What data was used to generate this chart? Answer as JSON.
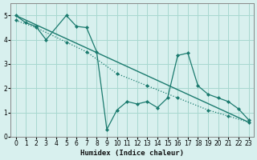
{
  "background_color": "#d8f0ee",
  "grid_color": "#a8d8d0",
  "line_color": "#1a7a6e",
  "xlabel": "Humidex (Indice chaleur)",
  "xlim": [
    -0.5,
    23.5
  ],
  "ylim": [
    0,
    5.5
  ],
  "yticks": [
    0,
    1,
    2,
    3,
    4,
    5
  ],
  "xticks": [
    0,
    1,
    2,
    3,
    4,
    5,
    6,
    7,
    8,
    9,
    10,
    11,
    12,
    13,
    14,
    15,
    16,
    17,
    18,
    19,
    20,
    21,
    22,
    23
  ],
  "series_straight": {
    "x": [
      0,
      23
    ],
    "y": [
      5.0,
      0.6
    ]
  },
  "series_dotted": {
    "x": [
      0,
      2,
      5,
      7,
      10,
      13,
      16,
      19,
      21,
      23
    ],
    "y": [
      4.8,
      4.5,
      3.9,
      3.5,
      2.6,
      2.1,
      1.6,
      1.1,
      0.85,
      0.6
    ]
  },
  "series_zigzag": {
    "x": [
      0,
      1,
      2,
      3,
      5,
      6,
      7,
      8,
      9,
      10,
      11,
      12,
      13,
      14,
      15,
      16,
      17,
      18,
      19,
      20,
      21,
      22,
      23
    ],
    "y": [
      5.0,
      4.7,
      4.55,
      4.0,
      5.0,
      4.55,
      4.5,
      3.5,
      0.3,
      1.1,
      1.45,
      1.35,
      1.45,
      1.2,
      1.6,
      3.35,
      3.45,
      2.1,
      1.75,
      1.6,
      1.45,
      1.15,
      0.7
    ]
  }
}
